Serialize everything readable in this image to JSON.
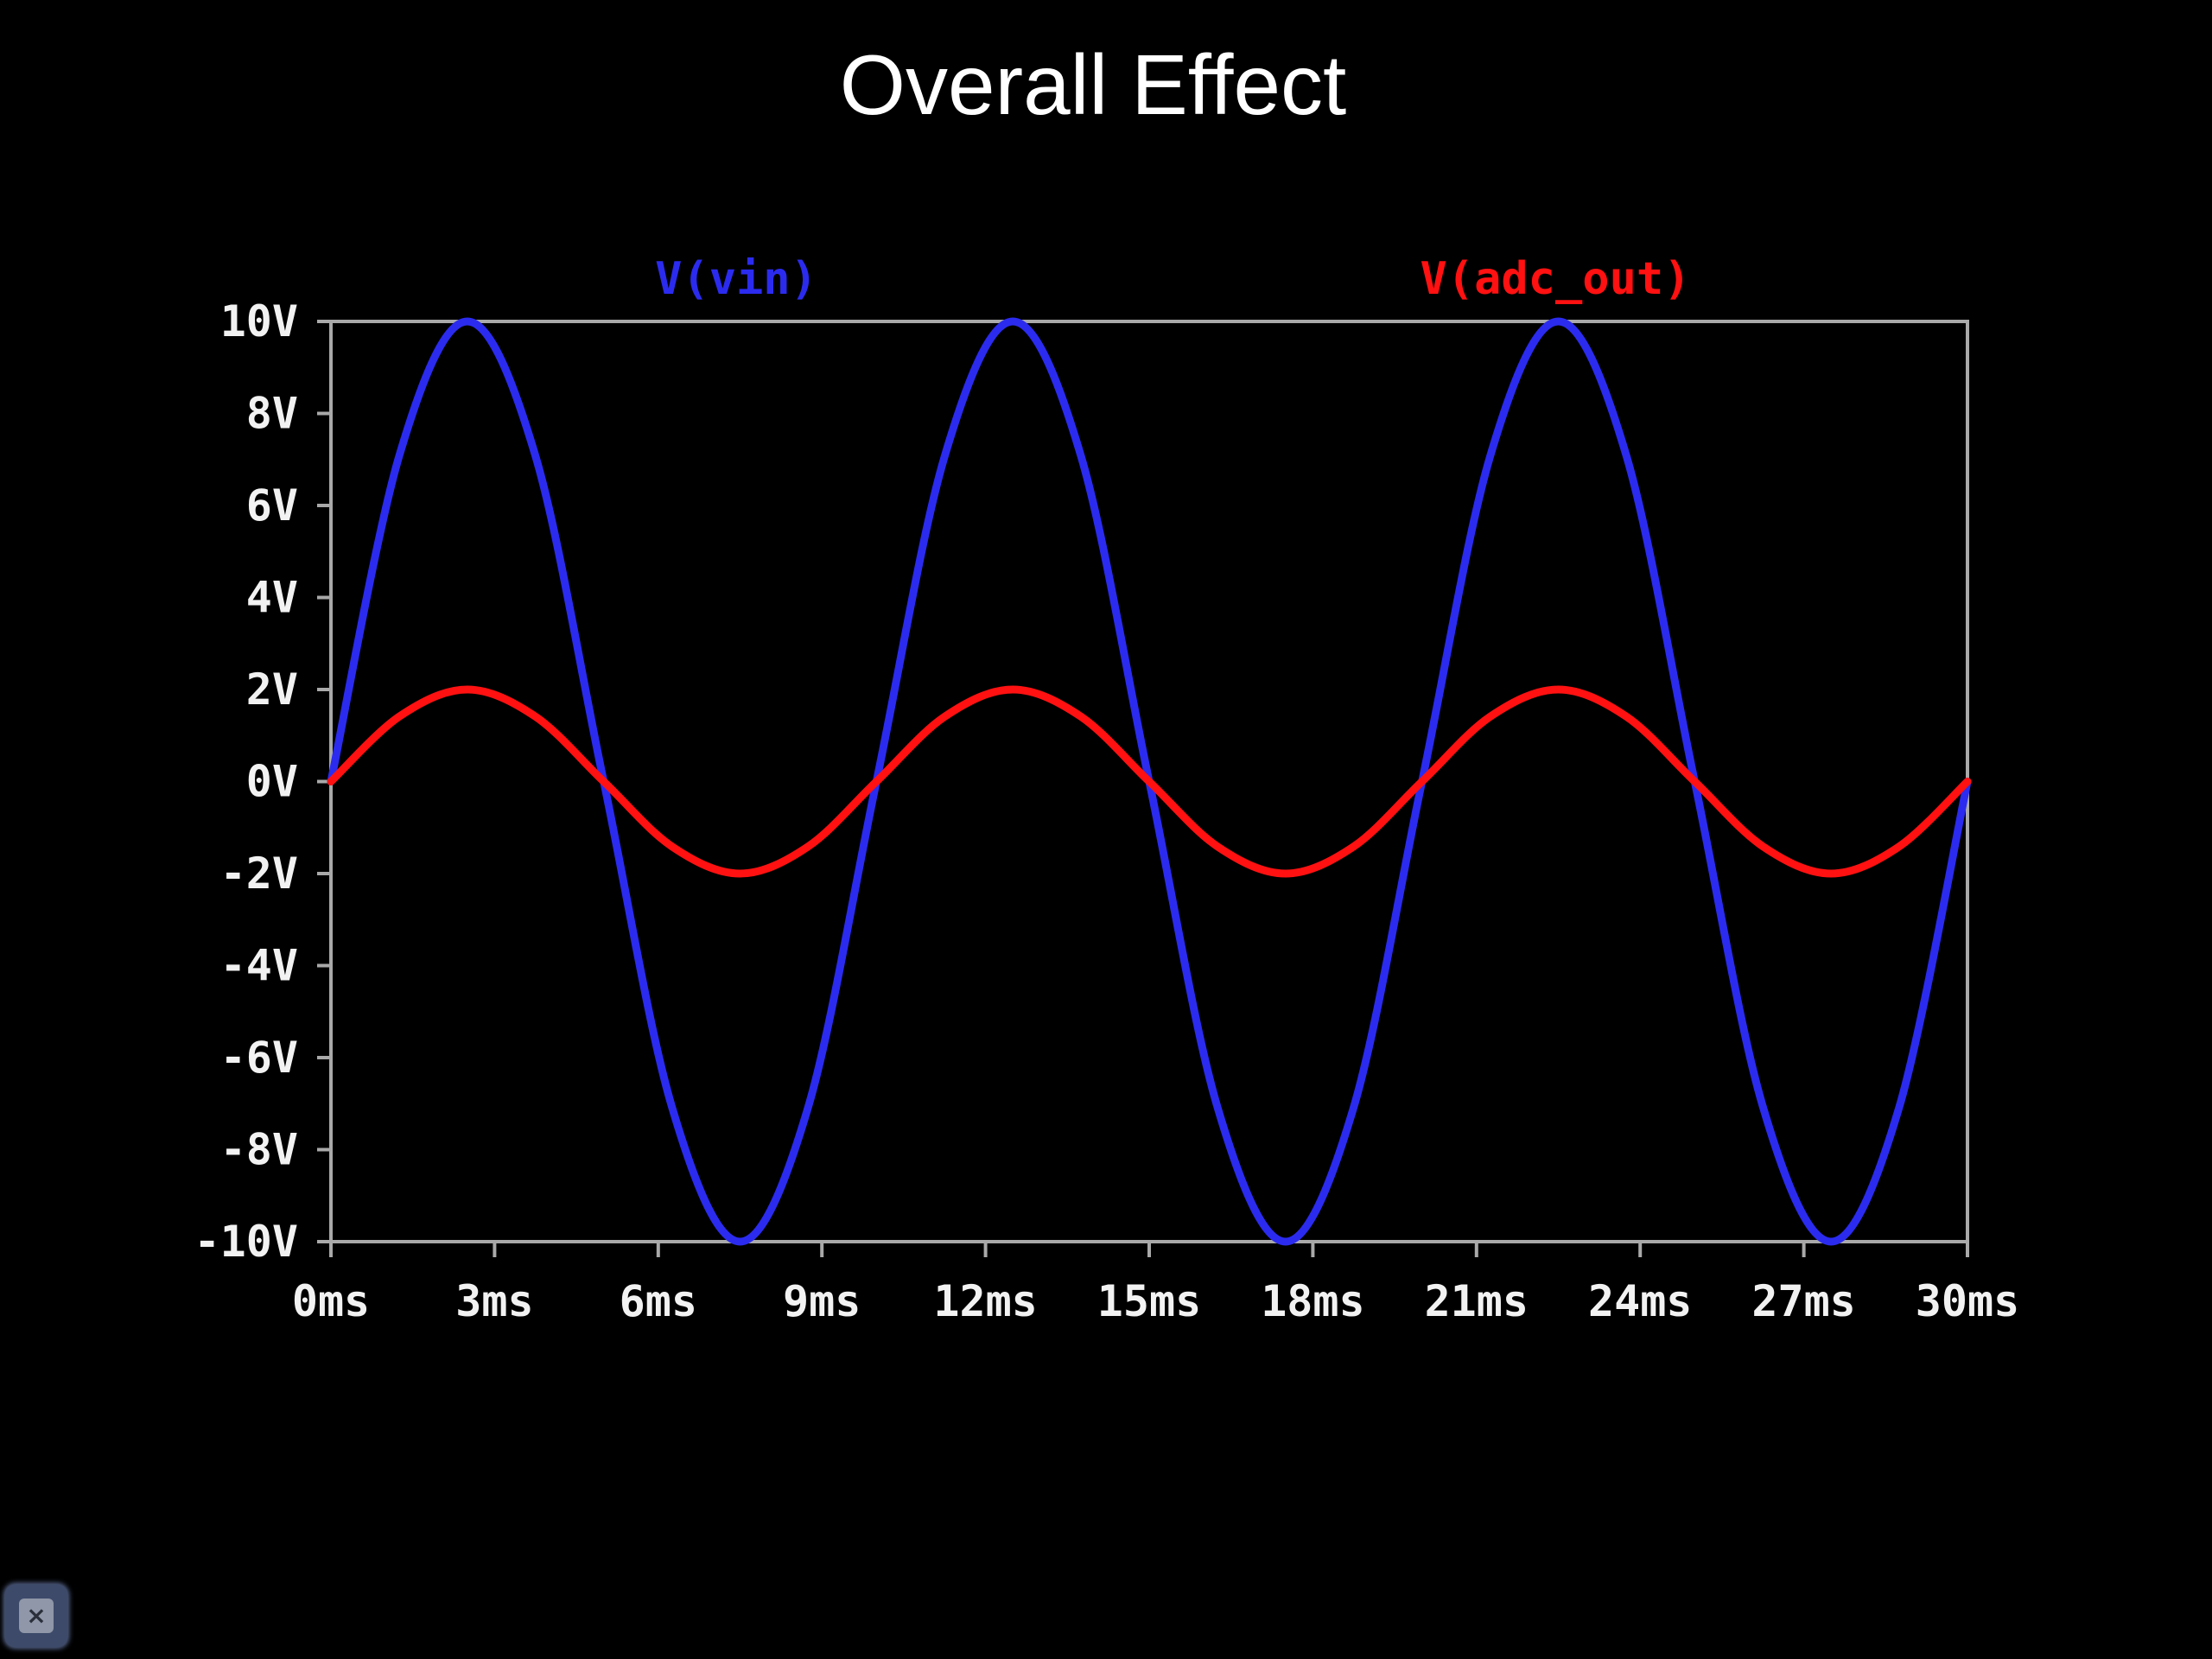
{
  "slide": {
    "title": "Overall Effect"
  },
  "close_button": {
    "icon": "close-icon",
    "glyph": "×"
  },
  "chart_data": {
    "type": "line",
    "title": "Overall Effect",
    "x_unit": "ms",
    "y_unit": "V",
    "xlim": [
      0,
      30
    ],
    "ylim": [
      -10,
      10
    ],
    "x_ticks": [
      "0ms",
      "3ms",
      "6ms",
      "9ms",
      "12ms",
      "15ms",
      "18ms",
      "21ms",
      "24ms",
      "27ms",
      "30ms"
    ],
    "y_ticks": [
      "10V",
      "8V",
      "6V",
      "4V",
      "2V",
      "0V",
      "-2V",
      "-4V",
      "-6V",
      "-8V",
      "-10V"
    ],
    "grid": false,
    "legend_placement": "top",
    "series": [
      {
        "name": "V(vin)",
        "color": "#2b2bef",
        "x": [
          0,
          1.25,
          2.5,
          3.75,
          5,
          6.25,
          7.5,
          8.75,
          10,
          11.25,
          12.5,
          13.75,
          15,
          16.25,
          17.5,
          18.75,
          20,
          21.25,
          22.5,
          23.75,
          25,
          26.25,
          27.5,
          28.75,
          30
        ],
        "y": [
          0,
          7.07,
          10,
          7.07,
          0,
          -7.07,
          -10,
          -7.07,
          0,
          7.07,
          10,
          7.07,
          0,
          -7.07,
          -10,
          -7.07,
          0,
          7.07,
          10,
          7.07,
          0,
          -7.07,
          -10,
          -7.07,
          0
        ]
      },
      {
        "name": "V(adc_out)",
        "color": "#ff1111",
        "x": [
          0,
          1.25,
          2.5,
          3.75,
          5,
          6.25,
          7.5,
          8.75,
          10,
          11.25,
          12.5,
          13.75,
          15,
          16.25,
          17.5,
          18.75,
          20,
          21.25,
          22.5,
          23.75,
          25,
          26.25,
          27.5,
          28.75,
          30
        ],
        "y": [
          0,
          1.41,
          2,
          1.41,
          0,
          -1.41,
          -2,
          -1.41,
          0,
          1.41,
          2,
          1.41,
          0,
          -1.41,
          -2,
          -1.41,
          0,
          1.41,
          2,
          1.41,
          0,
          -1.41,
          -2,
          -1.41,
          0
        ]
      }
    ]
  }
}
